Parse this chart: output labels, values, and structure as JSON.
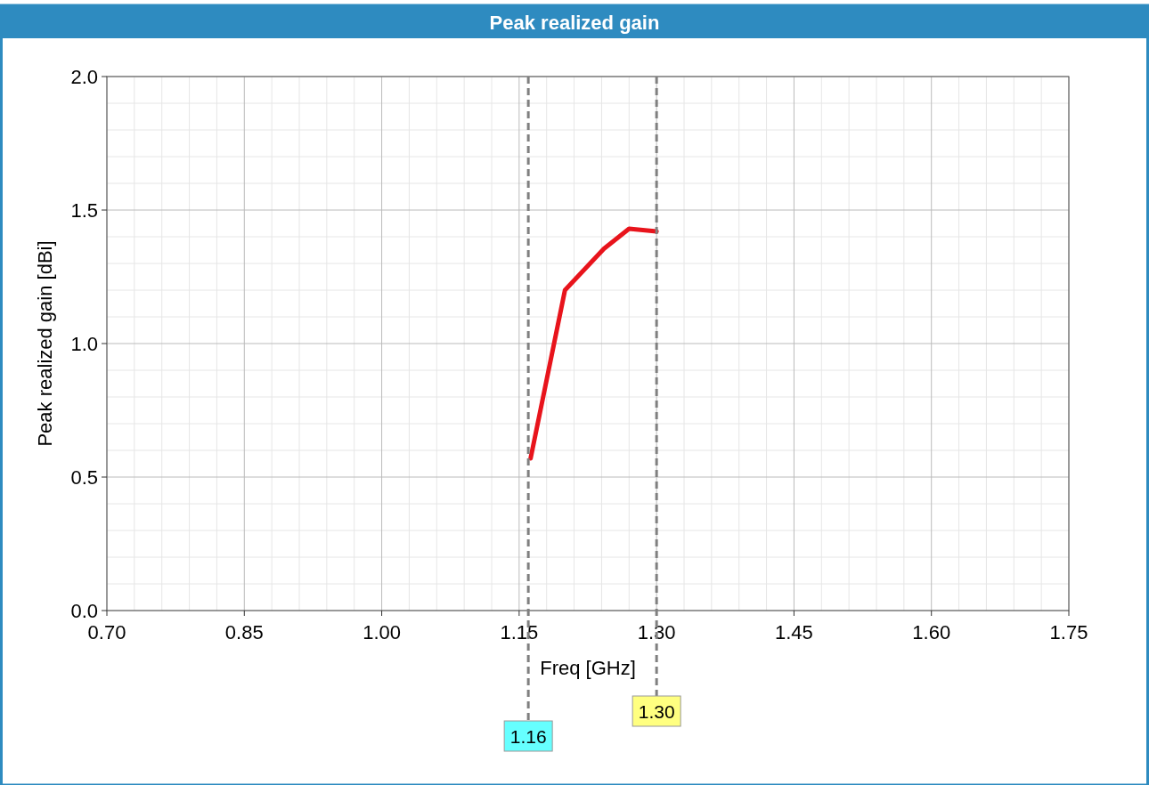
{
  "chart_data": {
    "type": "line",
    "title": "Peak realized gain",
    "xlabel": "Freq [GHz]",
    "ylabel": "Peak realized gain [dBi]",
    "series": [
      {
        "color": "#e8141c",
        "x": [
          1.1625,
          1.2,
          1.2425,
          1.27,
          1.3
        ],
        "values": [
          0.57,
          1.2,
          1.355,
          1.43,
          1.42
        ]
      }
    ],
    "xlim": [
      0.7,
      1.75
    ],
    "xticks": [
      {
        "value": 0.7,
        "label": "0.70"
      },
      {
        "value": 0.85,
        "label": "0.85"
      },
      {
        "value": 1.0,
        "label": "1.00"
      },
      {
        "value": 1.15,
        "label": "1.15"
      },
      {
        "value": 1.3,
        "label": "1.30"
      },
      {
        "value": 1.45,
        "label": "1.45"
      },
      {
        "value": 1.6,
        "label": "1.60"
      },
      {
        "value": 1.75,
        "label": "1.75"
      }
    ],
    "ylim": [
      0,
      2
    ],
    "yticks": [
      {
        "value": 0,
        "label": "0.0"
      },
      {
        "value": 0.5,
        "label": "0.5"
      },
      {
        "value": 1,
        "label": "1.0"
      },
      {
        "value": 1.5,
        "label": "1.5"
      },
      {
        "value": 2,
        "label": "2.0"
      }
    ],
    "grid": true,
    "line_style": "solid",
    "marker": "none",
    "ref_lines": [
      {
        "axis": "x",
        "value": 1.16,
        "label": "1.16",
        "color": "#808080",
        "line_style": "dashed"
      },
      {
        "axis": "x",
        "value": 1.3,
        "label": "1.30",
        "color": "#808080",
        "line_style": "dashed"
      }
    ]
  }
}
